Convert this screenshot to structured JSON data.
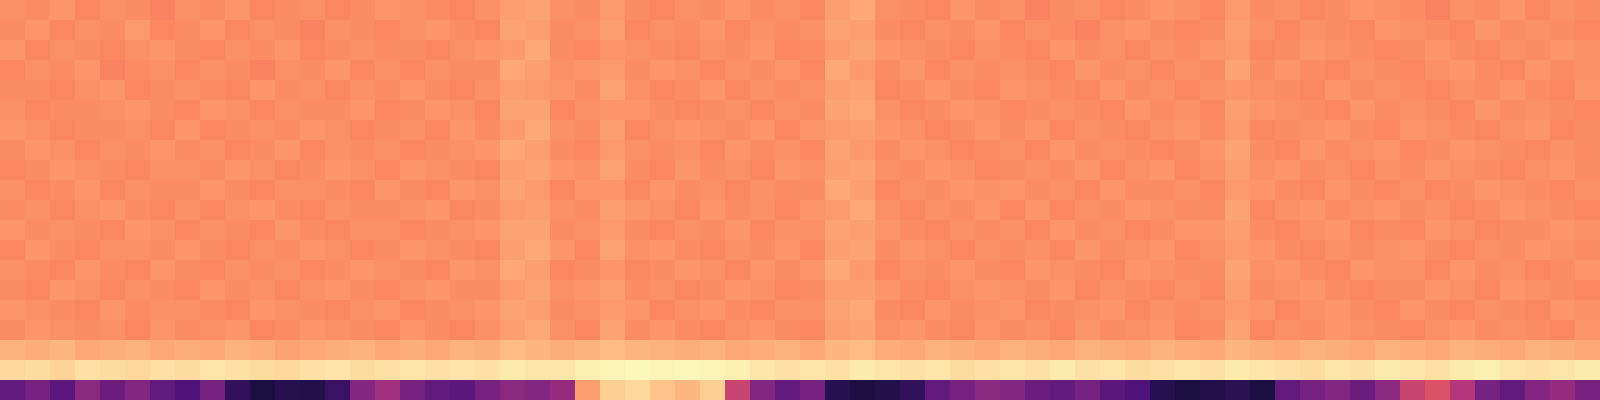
{
  "chart_data": {
    "type": "heatmap",
    "color": "magma",
    "zlim": [
      0,
      100
    ],
    "tick_labels": false,
    "cells": [
      [
        77,
        76,
        78,
        75,
        77,
        76,
        74,
        77,
        76,
        78,
        75,
        76,
        77,
        75,
        76,
        78,
        77,
        76,
        75,
        77,
        80,
        81,
        77,
        76,
        79,
        76,
        75,
        77,
        76,
        78,
        76,
        77,
        75,
        80,
        82,
        77,
        76,
        75,
        78,
        76,
        77,
        74,
        76,
        77,
        75,
        76,
        78,
        77,
        75,
        79,
        76,
        77,
        75,
        76,
        78,
        77,
        76,
        74,
        77,
        76,
        78,
        75,
        77,
        76
      ],
      [
        76,
        78,
        75,
        77,
        76,
        79,
        75,
        76,
        78,
        75,
        77,
        76,
        74,
        77,
        76,
        75,
        77,
        78,
        76,
        75,
        81,
        80,
        76,
        77,
        80,
        75,
        77,
        76,
        78,
        75,
        77,
        76,
        77,
        81,
        80,
        76,
        75,
        77,
        76,
        78,
        75,
        77,
        76,
        74,
        77,
        78,
        76,
        75,
        76,
        80,
        77,
        75,
        77,
        76,
        75,
        78,
        77,
        76,
        75,
        78,
        76,
        77,
        76,
        75
      ],
      [
        78,
        75,
        77,
        76,
        75,
        77,
        78,
        76,
        75,
        77,
        76,
        78,
        75,
        76,
        77,
        76,
        76,
        75,
        77,
        78,
        79,
        82,
        76,
        75,
        78,
        77,
        76,
        75,
        77,
        76,
        78,
        75,
        76,
        79,
        81,
        78,
        77,
        76,
        75,
        77,
        76,
        75,
        78,
        76,
        77,
        75,
        77,
        76,
        78,
        79,
        75,
        76,
        78,
        77,
        76,
        75,
        76,
        78,
        76,
        75,
        77,
        76,
        78,
        77
      ],
      [
        75,
        77,
        76,
        78,
        74,
        76,
        77,
        75,
        77,
        76,
        74,
        77,
        76,
        78,
        75,
        77,
        75,
        77,
        76,
        76,
        82,
        80,
        77,
        78,
        79,
        76,
        78,
        77,
        75,
        77,
        76,
        78,
        75,
        82,
        79,
        76,
        78,
        75,
        77,
        76,
        77,
        76,
        75,
        78,
        76,
        77,
        75,
        77,
        76,
        81,
        76,
        78,
        76,
        75,
        77,
        76,
        75,
        77,
        78,
        76,
        75,
        78,
        76,
        77
      ],
      [
        76,
        76,
        75,
        77,
        78,
        75,
        76,
        77,
        76,
        75,
        78,
        76,
        77,
        75,
        77,
        76,
        78,
        76,
        75,
        77,
        80,
        79,
        78,
        76,
        81,
        77,
        75,
        76,
        78,
        75,
        77,
        76,
        77,
        80,
        81,
        75,
        76,
        78,
        76,
        75,
        78,
        77,
        76,
        75,
        78,
        76,
        77,
        75,
        77,
        78,
        77,
        76,
        75,
        78,
        76,
        77,
        76,
        75,
        77,
        76,
        78,
        76,
        75,
        78
      ],
      [
        77,
        75,
        76,
        76,
        77,
        78,
        76,
        75,
        78,
        77,
        75,
        77,
        76,
        76,
        78,
        75,
        76,
        78,
        77,
        75,
        81,
        81,
        75,
        77,
        78,
        78,
        76,
        75,
        76,
        77,
        75,
        77,
        76,
        81,
        82,
        77,
        75,
        76,
        78,
        77,
        75,
        76,
        77,
        76,
        75,
        78,
        76,
        77,
        75,
        80,
        78,
        77,
        76,
        75,
        78,
        76,
        77,
        76,
        75,
        78,
        76,
        77,
        76,
        75
      ],
      [
        78,
        77,
        75,
        76,
        76,
        77,
        75,
        78,
        75,
        76,
        77,
        76,
        78,
        77,
        75,
        76,
        77,
        75,
        78,
        76,
        79,
        82,
        77,
        76,
        80,
        75,
        77,
        78,
        77,
        76,
        78,
        75,
        78,
        79,
        80,
        78,
        77,
        75,
        76,
        78,
        76,
        78,
        75,
        77,
        76,
        75,
        77,
        78,
        76,
        79,
        75,
        76,
        77,
        78,
        76,
        75,
        78,
        77,
        76,
        75,
        77,
        78,
        75,
        76
      ],
      [
        76,
        78,
        77,
        75,
        77,
        76,
        78,
        76,
        77,
        75,
        76,
        78,
        75,
        77,
        76,
        77,
        75,
        76,
        77,
        78,
        82,
        80,
        76,
        75,
        79,
        77,
        76,
        77,
        75,
        78,
        76,
        77,
        75,
        81,
        79,
        76,
        78,
        77,
        75,
        76,
        77,
        75,
        78,
        76,
        77,
        76,
        75,
        76,
        78,
        81,
        76,
        75,
        78,
        76,
        77,
        78,
        75,
        76,
        78,
        77,
        76,
        75,
        77,
        76
      ],
      [
        75,
        76,
        78,
        77,
        76,
        75,
        77,
        77,
        76,
        78,
        77,
        75,
        76,
        78,
        77,
        75,
        78,
        77,
        76,
        75,
        80,
        81,
        78,
        77,
        81,
        76,
        75,
        78,
        76,
        77,
        75,
        78,
        77,
        80,
        81,
        77,
        76,
        78,
        77,
        75,
        76,
        77,
        76,
        78,
        75,
        77,
        78,
        75,
        77,
        80,
        77,
        78,
        76,
        77,
        75,
        77,
        76,
        78,
        77,
        76,
        75,
        77,
        78,
        76
      ],
      [
        77,
        75,
        76,
        78,
        75,
        77,
        76,
        76,
        78,
        76,
        75,
        77,
        77,
        76,
        75,
        78,
        76,
        75,
        78,
        77,
        81,
        79,
        75,
        78,
        78,
        75,
        78,
        76,
        77,
        75,
        77,
        76,
        76,
        82,
        80,
        75,
        77,
        76,
        78,
        77,
        78,
        76,
        77,
        75,
        78,
        76,
        76,
        77,
        75,
        79,
        78,
        76,
        75,
        78,
        76,
        75,
        77,
        75,
        76,
        78,
        77,
        76,
        75,
        77
      ],
      [
        76,
        77,
        75,
        77,
        78,
        76,
        75,
        77,
        75,
        77,
        78,
        76,
        75,
        77,
        76,
        76,
        77,
        78,
        75,
        76,
        79,
        80,
        77,
        76,
        80,
        78,
        77,
        75,
        78,
        76,
        77,
        75,
        78,
        79,
        82,
        77,
        75,
        77,
        76,
        78,
        75,
        78,
        75,
        77,
        76,
        78,
        77,
        76,
        76,
        81,
        75,
        77,
        78,
        76,
        77,
        78,
        76,
        77,
        75,
        76,
        78,
        77,
        76,
        75
      ],
      [
        78,
        76,
        77,
        76,
        75,
        78,
        77,
        75,
        77,
        76,
        75,
        78,
        76,
        75,
        77,
        77,
        75,
        76,
        77,
        78,
        81,
        81,
        76,
        77,
        79,
        76,
        75,
        77,
        76,
        78,
        75,
        77,
        77,
        81,
        80,
        78,
        76,
        75,
        77,
        76,
        77,
        75,
        78,
        76,
        77,
        75,
        76,
        78,
        78,
        80,
        76,
        75,
        77,
        78,
        75,
        76,
        75,
        78,
        77,
        75,
        76,
        76,
        78,
        77
      ],
      [
        75,
        78,
        76,
        75,
        77,
        77,
        76,
        78,
        76,
        75,
        77,
        76,
        78,
        77,
        75,
        76,
        78,
        77,
        76,
        75,
        80,
        82,
        78,
        75,
        81,
        77,
        78,
        76,
        75,
        77,
        76,
        78,
        75,
        80,
        81,
        76,
        78,
        77,
        75,
        77,
        76,
        77,
        75,
        78,
        76,
        77,
        78,
        75,
        77,
        79,
        78,
        76,
        75,
        77,
        76,
        77,
        78,
        76,
        75,
        77,
        76,
        78,
        77,
        76
      ],
      [
        77,
        76,
        75,
        78,
        76,
        75,
        78,
        76,
        75,
        77,
        76,
        77,
        75,
        76,
        78,
        77,
        76,
        75,
        78,
        77,
        82,
        80,
        75,
        76,
        78,
        75,
        76,
        78,
        77,
        75,
        78,
        76,
        78,
        82,
        79,
        75,
        77,
        76,
        78,
        76,
        75,
        78,
        77,
        76,
        75,
        78,
        77,
        76,
        76,
        81,
        77,
        78,
        76,
        75,
        78,
        77,
        77,
        75,
        78,
        76,
        77,
        75,
        76,
        78
      ],
      [
        76,
        75,
        78,
        77,
        75,
        77,
        76,
        75,
        78,
        76,
        77,
        75,
        77,
        78,
        76,
        75,
        77,
        78,
        76,
        76,
        79,
        81,
        77,
        78,
        80,
        76,
        77,
        75,
        76,
        78,
        77,
        75,
        76,
        80,
        80,
        78,
        76,
        75,
        77,
        78,
        77,
        76,
        78,
        75,
        77,
        76,
        75,
        77,
        75,
        80,
        76,
        77,
        78,
        76,
        75,
        76,
        76,
        78,
        77,
        75,
        78,
        77,
        76,
        75
      ],
      [
        78,
        77,
        76,
        75,
        78,
        76,
        77,
        77,
        76,
        75,
        78,
        77,
        76,
        75,
        77,
        78,
        75,
        76,
        77,
        78,
        81,
        80,
        76,
        77,
        79,
        78,
        75,
        77,
        78,
        76,
        75,
        77,
        77,
        81,
        82,
        76,
        75,
        78,
        76,
        77,
        78,
        75,
        76,
        77,
        78,
        75,
        77,
        76,
        77,
        79,
        78,
        75,
        77,
        78,
        76,
        75,
        78,
        76,
        75,
        77,
        76,
        75,
        78,
        77
      ],
      [
        76,
        78,
        77,
        76,
        77,
        75,
        78,
        76,
        77,
        78,
        75,
        76,
        78,
        77,
        76,
        75,
        78,
        76,
        75,
        77,
        80,
        82,
        77,
        75,
        81,
        76,
        78,
        76,
        75,
        77,
        78,
        76,
        75,
        80,
        81,
        77,
        78,
        76,
        75,
        78,
        76,
        77,
        75,
        78,
        76,
        77,
        78,
        75,
        76,
        81,
        75,
        77,
        76,
        78,
        77,
        76,
        75,
        77,
        78,
        76,
        77,
        76,
        75,
        78
      ],
      [
        84,
        83,
        85,
        82,
        83,
        84,
        82,
        83,
        82,
        84,
        83,
        81,
        82,
        83,
        84,
        82,
        83,
        82,
        84,
        83,
        86,
        85,
        83,
        84,
        86,
        85,
        84,
        83,
        84,
        82,
        83,
        84,
        82,
        85,
        86,
        83,
        82,
        84,
        83,
        82,
        84,
        83,
        82,
        84,
        83,
        82,
        84,
        83,
        82,
        85,
        83,
        82,
        84,
        83,
        82,
        84,
        83,
        82,
        84,
        83,
        82,
        84,
        83,
        82
      ],
      [
        92,
        93,
        91,
        94,
        93,
        92,
        94,
        93,
        95,
        94,
        93,
        92,
        94,
        95,
        93,
        94,
        95,
        94,
        95,
        94,
        96,
        95,
        95,
        97,
        98,
        99,
        98,
        99,
        98,
        97,
        95,
        94,
        95,
        94,
        96,
        95,
        94,
        95,
        93,
        94,
        95,
        94,
        96,
        94,
        95,
        93,
        94,
        95,
        94,
        96,
        95,
        94,
        93,
        95,
        94,
        96,
        95,
        94,
        96,
        97,
        95,
        94,
        95,
        96
      ],
      [
        30,
        35,
        28,
        40,
        32,
        38,
        30,
        25,
        35,
        18,
        12,
        15,
        14,
        20,
        38,
        45,
        35,
        30,
        28,
        35,
        40,
        38,
        42,
        80,
        90,
        92,
        88,
        85,
        90,
        55,
        38,
        30,
        35,
        15,
        12,
        14,
        18,
        30,
        35,
        40,
        38,
        32,
        30,
        35,
        28,
        25,
        15,
        12,
        14,
        16,
        12,
        30,
        35,
        38,
        32,
        40,
        55,
        60,
        50,
        35,
        30,
        38,
        42,
        35
      ]
    ]
  }
}
